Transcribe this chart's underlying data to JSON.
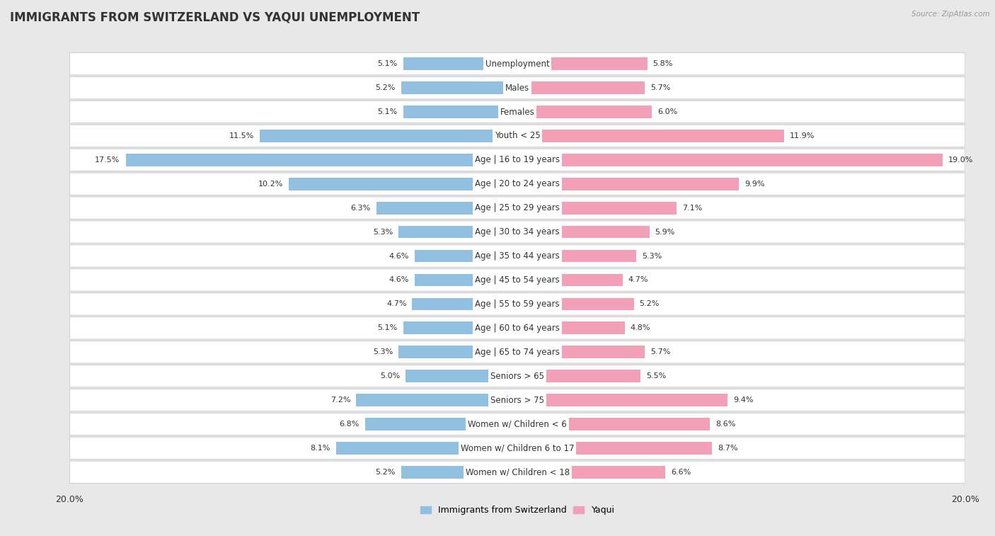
{
  "title": "IMMIGRANTS FROM SWITZERLAND VS YAQUI UNEMPLOYMENT",
  "source": "Source: ZipAtlas.com",
  "categories": [
    "Unemployment",
    "Males",
    "Females",
    "Youth < 25",
    "Age | 16 to 19 years",
    "Age | 20 to 24 years",
    "Age | 25 to 29 years",
    "Age | 30 to 34 years",
    "Age | 35 to 44 years",
    "Age | 45 to 54 years",
    "Age | 55 to 59 years",
    "Age | 60 to 64 years",
    "Age | 65 to 74 years",
    "Seniors > 65",
    "Seniors > 75",
    "Women w/ Children < 6",
    "Women w/ Children 6 to 17",
    "Women w/ Children < 18"
  ],
  "left_values": [
    5.1,
    5.2,
    5.1,
    11.5,
    17.5,
    10.2,
    6.3,
    5.3,
    4.6,
    4.6,
    4.7,
    5.1,
    5.3,
    5.0,
    7.2,
    6.8,
    8.1,
    5.2
  ],
  "right_values": [
    5.8,
    5.7,
    6.0,
    11.9,
    19.0,
    9.9,
    7.1,
    5.9,
    5.3,
    4.7,
    5.2,
    4.8,
    5.7,
    5.5,
    9.4,
    8.6,
    8.7,
    6.6
  ],
  "left_color": "#92C0E0",
  "right_color": "#F2A0B8",
  "background_color": "#e8e8e8",
  "row_color": "#ffffff",
  "row_border_color": "#d0d0d0",
  "max_val": 20.0,
  "legend_left": "Immigrants from Switzerland",
  "legend_right": "Yaqui",
  "title_fontsize": 12,
  "label_fontsize": 8.5,
  "value_fontsize": 8.0,
  "tick_fontsize": 9.0
}
